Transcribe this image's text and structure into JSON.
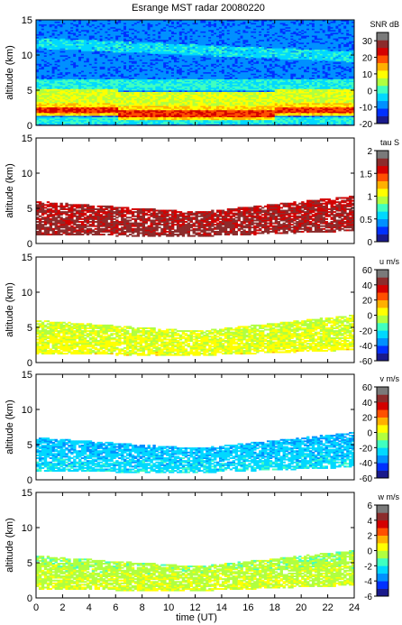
{
  "figure": {
    "title": "Esrange MST radar 20080220",
    "xlabel": "time (UT)",
    "x_ticks": [
      0,
      2,
      4,
      6,
      8,
      10,
      12,
      14,
      16,
      18,
      20,
      22,
      24
    ],
    "xlim": [
      0,
      24
    ]
  },
  "colormap": [
    "#1a1a8c",
    "#0030ff",
    "#0090ff",
    "#00d8ff",
    "#40ffc0",
    "#b0ff40",
    "#ffff00",
    "#ffb000",
    "#ff5000",
    "#d40000",
    "#8c2c2c",
    "#7a7a7a"
  ],
  "chart_data": [
    {
      "type": "heatmap",
      "name": "SNR",
      "ylabel": "altitude (km)",
      "ylim": [
        0,
        15
      ],
      "y_ticks": [
        0,
        5,
        10,
        15
      ],
      "x": [
        0,
        24
      ],
      "colorbar_label": "SNR dB",
      "colorbar_range": [
        -20,
        35
      ],
      "colorbar_ticks": [
        -20,
        -10,
        0,
        10,
        20,
        30
      ],
      "description_layers": [
        {
          "alt_min": 0,
          "alt_max": 15,
          "level": -10
        },
        {
          "alt_min": 0.2,
          "alt_max": 1.2,
          "level": 0
        },
        {
          "alt_min": 1.2,
          "alt_max": 3.0,
          "level": 15
        },
        {
          "alt_min": 1.6,
          "alt_max": 2.4,
          "level": 25
        },
        {
          "alt_min": 3.0,
          "alt_max": 5.0,
          "level": 10
        },
        {
          "alt_min": 5.0,
          "alt_max": 6.5,
          "level": 0
        },
        {
          "alt_min": 10.0,
          "alt_max": 11.5,
          "level": -2
        }
      ]
    },
    {
      "type": "heatmap",
      "name": "tau",
      "ylabel": "altitude (km)",
      "ylim": [
        0,
        15
      ],
      "y_ticks": [
        0,
        5,
        10,
        15
      ],
      "colorbar_label": "tau S",
      "colorbar_range": [
        0,
        2
      ],
      "colorbar_ticks": [
        0,
        0.5,
        1,
        1.5,
        2
      ],
      "band": {
        "alt_min_start": 1.2,
        "alt_max_start": 6.0,
        "alt_min_mid": 1.0,
        "alt_max_mid": 4.5,
        "alt_min_end": 1.8,
        "alt_max_end": 6.8,
        "value": 1.9
      }
    },
    {
      "type": "heatmap",
      "name": "u",
      "ylabel": "altitude (km)",
      "ylim": [
        0,
        15
      ],
      "y_ticks": [
        0,
        5,
        10,
        15
      ],
      "colorbar_label": "u m/s",
      "colorbar_range": [
        -60,
        60
      ],
      "colorbar_ticks": [
        -60,
        -40,
        -20,
        0,
        20,
        40,
        60
      ],
      "band": {
        "alt_min_start": 1.2,
        "alt_max_start": 6.0,
        "alt_min_mid": 1.0,
        "alt_max_mid": 4.5,
        "alt_min_end": 1.8,
        "alt_max_end": 6.8,
        "value": 10
      }
    },
    {
      "type": "heatmap",
      "name": "v",
      "ylabel": "altitude (km)",
      "ylim": [
        0,
        15
      ],
      "y_ticks": [
        0,
        5,
        10,
        15
      ],
      "colorbar_label": "v m/s",
      "colorbar_range": [
        -60,
        60
      ],
      "colorbar_ticks": [
        -60,
        -40,
        -20,
        0,
        20,
        40,
        60
      ],
      "band": {
        "alt_min_start": 1.2,
        "alt_max_start": 6.0,
        "alt_min_mid": 1.0,
        "alt_max_mid": 4.5,
        "alt_min_end": 1.8,
        "alt_max_end": 6.8,
        "value": -20
      }
    },
    {
      "type": "heatmap",
      "name": "w",
      "ylabel": "altitude (km)",
      "ylim": [
        0,
        15
      ],
      "y_ticks": [
        0,
        5,
        10,
        15
      ],
      "colorbar_label": "w m/s",
      "colorbar_range": [
        -6,
        6
      ],
      "colorbar_ticks": [
        -6,
        -4,
        -2,
        0,
        2,
        4,
        6
      ],
      "band": {
        "alt_min_start": 1.2,
        "alt_max_start": 6.0,
        "alt_min_mid": 1.0,
        "alt_max_mid": 4.5,
        "alt_min_end": 1.8,
        "alt_max_end": 6.8,
        "value": 0.5
      }
    }
  ]
}
